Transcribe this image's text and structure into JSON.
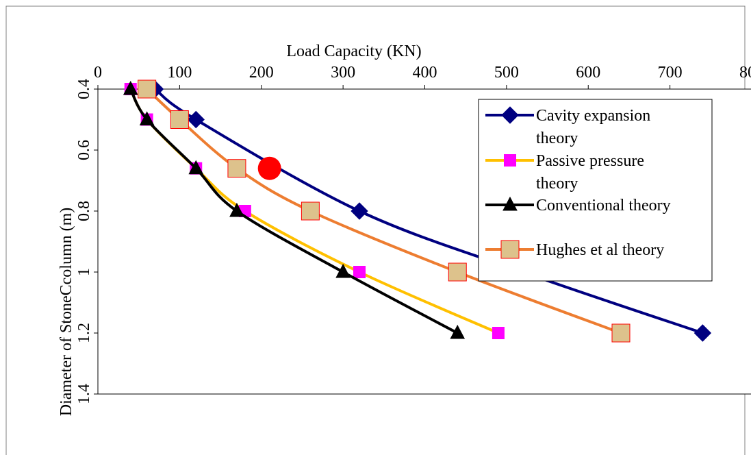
{
  "chart_data": {
    "type": "line",
    "xlabel": "Load Capacity (KN)",
    "ylabel": "Diameter of StoneCcolumn (m)",
    "xlim": [
      0,
      800
    ],
    "ylim": [
      0.4,
      1.4
    ],
    "x_ticks": [
      "0",
      "100",
      "200",
      "300",
      "400",
      "500",
      "600",
      "700",
      "800"
    ],
    "y_ticks": [
      "0.4",
      "0.6",
      "0.8",
      "1",
      "1.2",
      "1.4"
    ],
    "y_axis_reversed": true,
    "x_axis_position": "top",
    "grid": false,
    "legend_position": "top-right",
    "series": [
      {
        "name": "Cavity expansion theory",
        "color": "#000080",
        "marker": "diamond",
        "points": [
          [
            70,
            0.4
          ],
          [
            120,
            0.5
          ],
          [
            320,
            0.8
          ],
          [
            520,
            1.0
          ],
          [
            740,
            1.2
          ]
        ]
      },
      {
        "name": "Passive pressure theory",
        "color": "#ffc000",
        "marker": "square",
        "marker_color": "#ff00ff",
        "points": [
          [
            40,
            0.4
          ],
          [
            60,
            0.5
          ],
          [
            120,
            0.66
          ],
          [
            180,
            0.8
          ],
          [
            320,
            1.0
          ],
          [
            490,
            1.2
          ]
        ]
      },
      {
        "name": "Conventional theory",
        "color": "#000000",
        "marker": "triangle",
        "points": [
          [
            40,
            0.4
          ],
          [
            60,
            0.5
          ],
          [
            120,
            0.66
          ],
          [
            170,
            0.8
          ],
          [
            300,
            1.0
          ],
          [
            440,
            1.2
          ]
        ]
      },
      {
        "name": "Hughes et al theory",
        "color": "#ed7d31",
        "marker": "square",
        "marker_color": "#ddc28c",
        "points": [
          [
            60,
            0.4
          ],
          [
            100,
            0.5
          ],
          [
            170,
            0.66
          ],
          [
            260,
            0.8
          ],
          [
            440,
            1.0
          ],
          [
            640,
            1.2
          ]
        ]
      }
    ],
    "annotations": [
      {
        "type": "dot",
        "color": "#ff0000",
        "x": 210,
        "y": 0.66
      }
    ]
  }
}
